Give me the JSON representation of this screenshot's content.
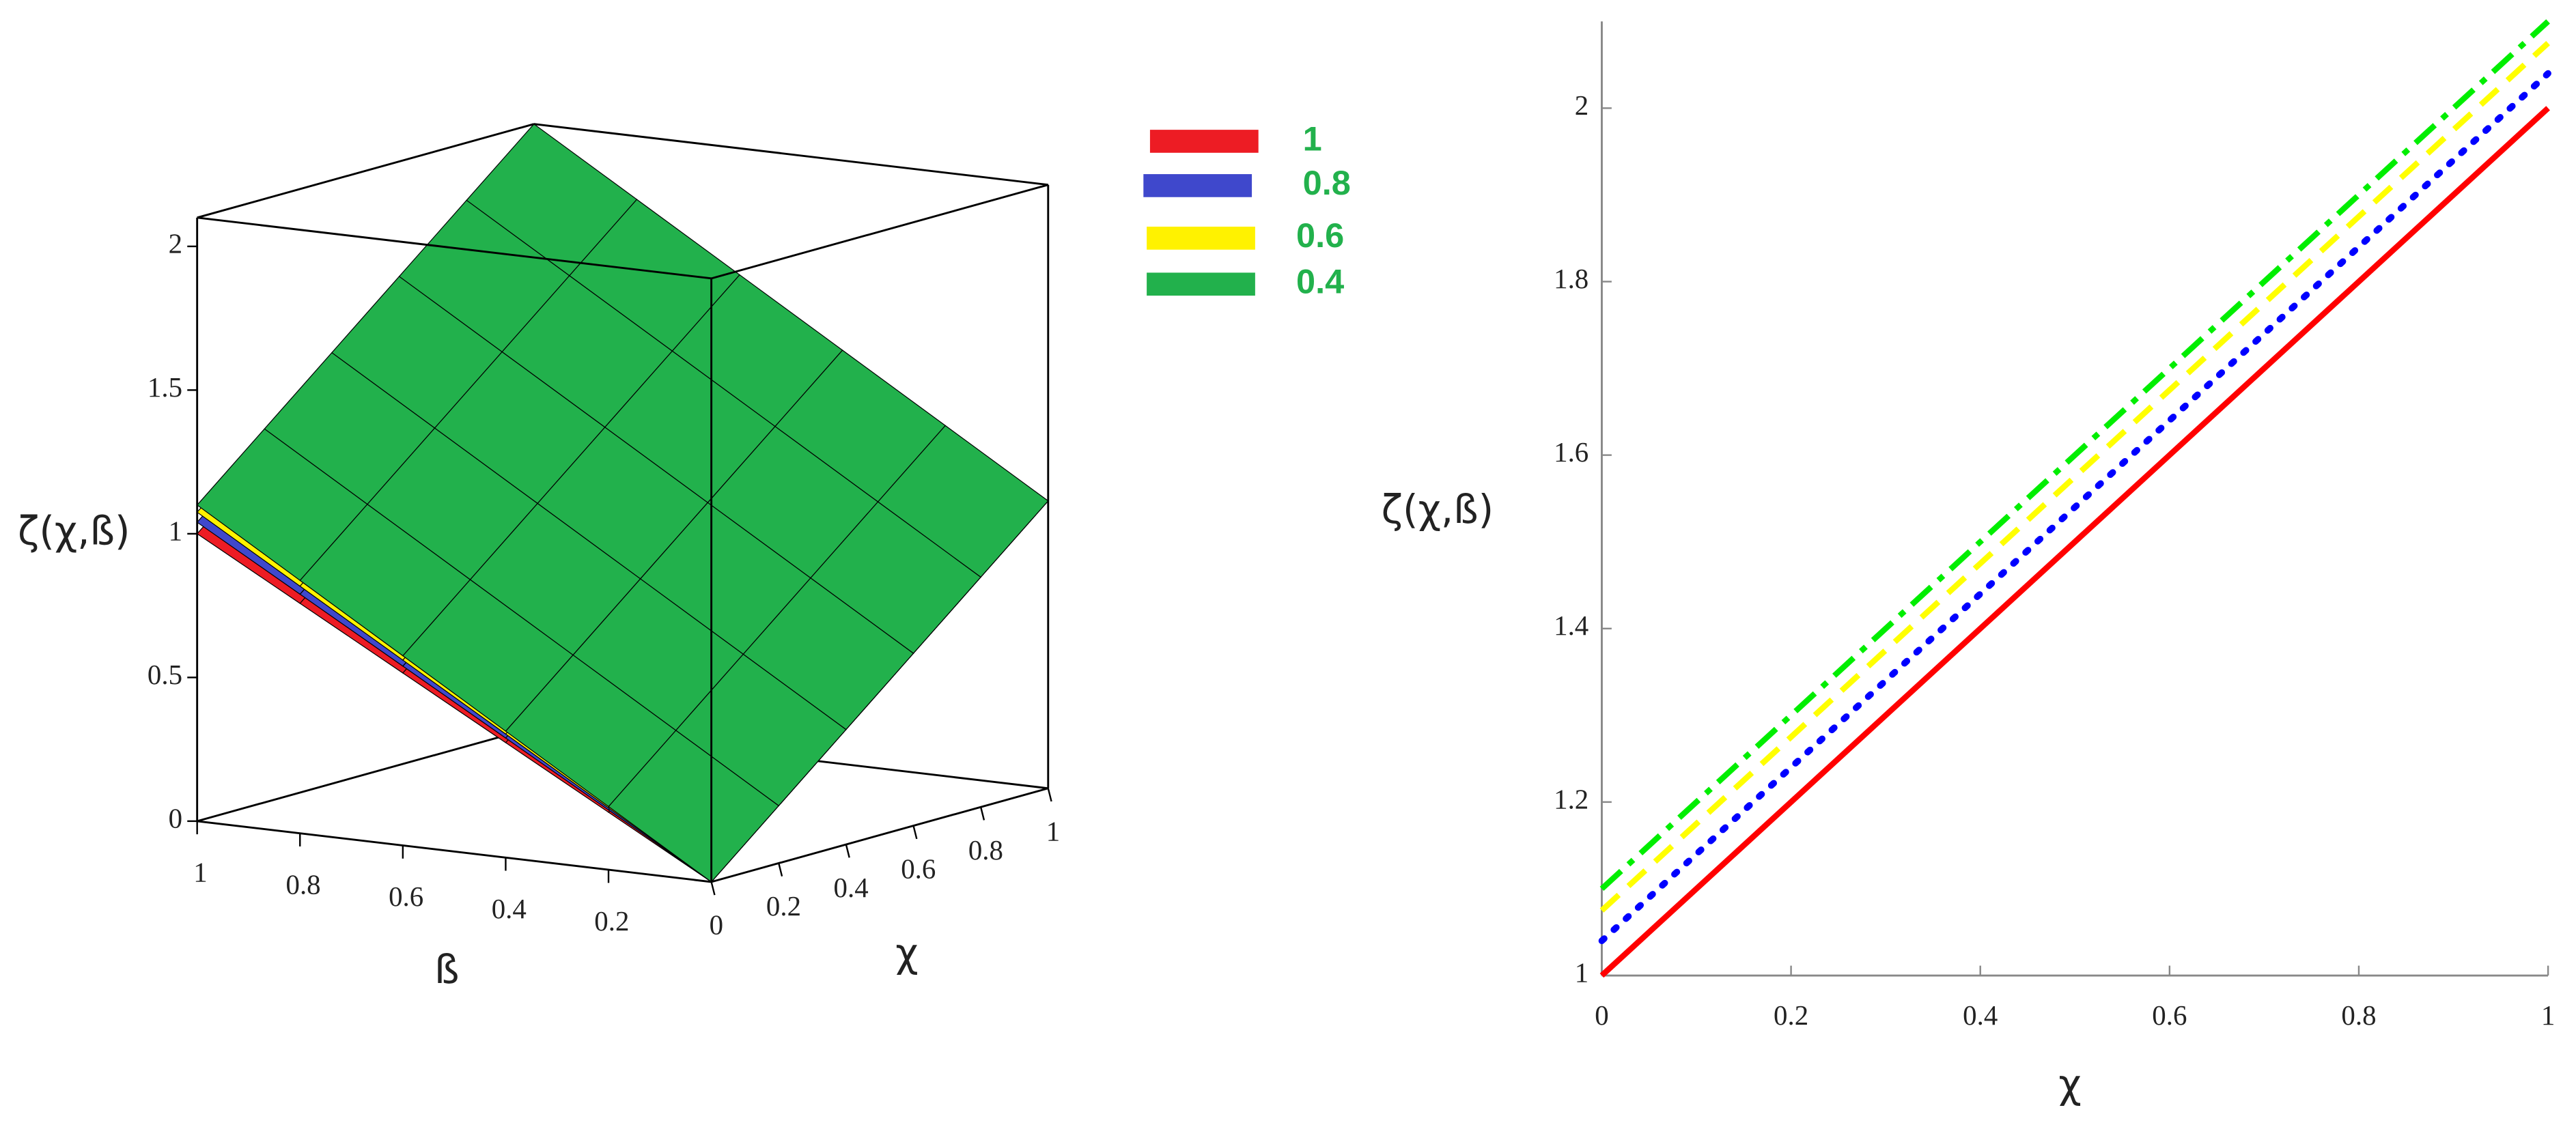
{
  "chart_data": [
    {
      "type": "surface",
      "z_label": "ζ(χ,ß)",
      "x_label": "χ",
      "y_label": "ß",
      "x": [
        0,
        0.2,
        0.4,
        0.6,
        0.8,
        1
      ],
      "y": [
        0,
        0.2,
        0.4,
        0.6,
        0.8,
        1
      ],
      "xlim": [
        0,
        1
      ],
      "ylim": [
        0,
        1
      ],
      "zlim": [
        0,
        2.1
      ],
      "xticks": [
        0,
        0.2,
        0.4,
        0.6,
        0.8,
        1
      ],
      "yticks": [
        0.2,
        0.4,
        0.6,
        0.8,
        1
      ],
      "zticks": [
        0,
        0.5,
        1,
        1.5,
        2
      ],
      "legend": "right",
      "series": [
        {
          "name": "1",
          "color": "#ed1c24",
          "z": [
            [
              0,
              0.2,
              0.4,
              0.6,
              0.8,
              1
            ],
            [
              0.2,
              0.4,
              0.6,
              0.8,
              1,
              1.2
            ],
            [
              0.4,
              0.6,
              0.8,
              1,
              1.2,
              1.4
            ],
            [
              0.6,
              0.8,
              1,
              1.2,
              1.4,
              1.6
            ],
            [
              0.8,
              1,
              1.2,
              1.4,
              1.6,
              1.8
            ],
            [
              1,
              1.2,
              1.4,
              1.6,
              1.8,
              2
            ]
          ]
        },
        {
          "name": "0.8",
          "color": "#3f48cc",
          "z": [
            [
              0,
              0.208,
              0.416,
              0.624,
              0.832,
              1.04
            ],
            [
              0.2,
              0.408,
              0.616,
              0.824,
              1.032,
              1.24
            ],
            [
              0.4,
              0.608,
              0.816,
              1.024,
              1.232,
              1.44
            ],
            [
              0.6,
              0.808,
              1.016,
              1.224,
              1.432,
              1.64
            ],
            [
              0.8,
              1.008,
              1.216,
              1.424,
              1.632,
              1.84
            ],
            [
              1,
              1.208,
              1.416,
              1.624,
              1.832,
              2.04
            ]
          ]
        },
        {
          "name": "0.6",
          "color": "#fff200",
          "z": [
            [
              0,
              0.215,
              0.43,
              0.645,
              0.86,
              1.075
            ],
            [
              0.2,
              0.415,
              0.63,
              0.845,
              1.06,
              1.275
            ],
            [
              0.4,
              0.615,
              0.83,
              1.045,
              1.26,
              1.475
            ],
            [
              0.6,
              0.815,
              1.03,
              1.245,
              1.46,
              1.675
            ],
            [
              0.8,
              1.015,
              1.23,
              1.445,
              1.66,
              1.875
            ],
            [
              1,
              1.215,
              1.43,
              1.645,
              1.86,
              2.075
            ]
          ]
        },
        {
          "name": "0.4",
          "color": "#22b14c",
          "z": [
            [
              0,
              0.22,
              0.44,
              0.66,
              0.88,
              1.1
            ],
            [
              0.2,
              0.42,
              0.64,
              0.86,
              1.08,
              1.3
            ],
            [
              0.4,
              0.62,
              0.84,
              1.06,
              1.28,
              1.5
            ],
            [
              0.6,
              0.82,
              1.04,
              1.26,
              1.48,
              1.7
            ],
            [
              0.8,
              1.02,
              1.24,
              1.46,
              1.68,
              1.9
            ],
            [
              1,
              1.22,
              1.44,
              1.66,
              1.88,
              2.1
            ]
          ]
        }
      ]
    },
    {
      "type": "line",
      "y_label": "ζ(χ,ß)",
      "x_label": "χ",
      "x": [
        0,
        1
      ],
      "xlim": [
        0,
        1
      ],
      "ylim": [
        1,
        2.1
      ],
      "xticks": [
        0,
        0.2,
        0.4,
        0.6,
        0.8,
        1
      ],
      "yticks": [
        1,
        1.2,
        1.4,
        1.6,
        1.8,
        2
      ],
      "series": [
        {
          "color": "#ff0000",
          "dash": "solid",
          "values": [
            1,
            2
          ]
        },
        {
          "color": "#0000ff",
          "dash": "dot",
          "values": [
            1.04,
            2.04
          ]
        },
        {
          "color": "#ffff00",
          "dash": "dash",
          "values": [
            1.075,
            2.075
          ]
        },
        {
          "color": "#00ee00",
          "dash": "dashdot",
          "values": [
            1.1,
            2.1
          ]
        }
      ]
    }
  ]
}
